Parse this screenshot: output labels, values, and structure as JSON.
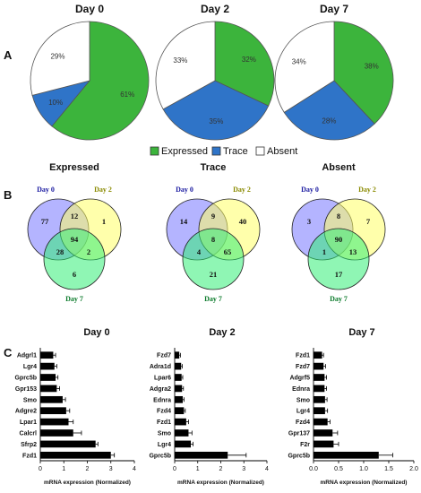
{
  "panel_labels": {
    "a": "A",
    "b": "B",
    "c": "C"
  },
  "colors": {
    "expressed": "#3cb43c",
    "trace": "#2f74c8",
    "absent": "#ffffff",
    "venn_day0": "#7777ff",
    "venn_day2": "#ffff66",
    "venn_day7": "#33ee77",
    "set_day0": "#1a1aa0",
    "set_day2": "#8a8a00",
    "set_day7": "#0a7a2a"
  },
  "legend": [
    {
      "key": "expressed",
      "label": "Expressed"
    },
    {
      "key": "trace",
      "label": "Trace"
    },
    {
      "key": "absent",
      "label": "Absent"
    }
  ],
  "chart_data": [
    {
      "type": "pie",
      "title": "Day 0",
      "slices": [
        {
          "key": "expressed",
          "value": 61,
          "label": "61%"
        },
        {
          "key": "trace",
          "value": 10,
          "label": "10%"
        },
        {
          "key": "absent",
          "value": 29,
          "label": "29%"
        }
      ]
    },
    {
      "type": "pie",
      "title": "Day 2",
      "slices": [
        {
          "key": "expressed",
          "value": 32,
          "label": "32%"
        },
        {
          "key": "trace",
          "value": 35,
          "label": "35%"
        },
        {
          "key": "absent",
          "value": 33,
          "label": "33%"
        }
      ]
    },
    {
      "type": "pie",
      "title": "Day 7",
      "slices": [
        {
          "key": "expressed",
          "value": 38,
          "label": "38%"
        },
        {
          "key": "trace",
          "value": 28,
          "label": "28%"
        },
        {
          "key": "absent",
          "value": 34,
          "label": "34%"
        }
      ]
    },
    {
      "type": "venn",
      "title": "Expressed",
      "sets": [
        "Day 0",
        "Day 2",
        "Day 7"
      ],
      "regions": {
        "d0": "77",
        "d2": "1",
        "d7": "6",
        "d0d2": "12",
        "d0d7": "28",
        "d2d7": "2",
        "all": "94"
      }
    },
    {
      "type": "venn",
      "title": "Trace",
      "sets": [
        "Day 0",
        "Day 2",
        "Day 7"
      ],
      "regions": {
        "d0": "14",
        "d2": "40",
        "d7": "21",
        "d0d2": "9",
        "d0d7": "4",
        "d2d7": "65",
        "all": "8"
      }
    },
    {
      "type": "venn",
      "title": "Absent",
      "sets": [
        "Day 0",
        "Day 2",
        "Day 7"
      ],
      "regions": {
        "d0": "3",
        "d2": "7",
        "d7": "17",
        "d0d2": "8",
        "d0d7": "1",
        "d2d7": "13",
        "all": "90"
      }
    },
    {
      "type": "bar",
      "orientation": "horizontal",
      "title": "Day 0",
      "xlabel": "mRNA expression (Normalized)",
      "xlim": [
        0,
        4
      ],
      "ticks": [
        "0",
        "1",
        "2",
        "3",
        "4"
      ],
      "categories": [
        "Adgrl1",
        "Lgr4",
        "Gprc5b",
        "Gpr153",
        "Smo",
        "Adgre2",
        "Lpar1",
        "Calcrl",
        "Sfrp2",
        "Fzd1"
      ],
      "values": [
        0.55,
        0.6,
        0.65,
        0.7,
        0.95,
        1.1,
        1.2,
        1.4,
        2.35,
        3.0
      ],
      "errors": [
        0.1,
        0.1,
        0.1,
        0.12,
        0.12,
        0.15,
        0.2,
        0.35,
        0.1,
        0.15
      ]
    },
    {
      "type": "bar",
      "orientation": "horizontal",
      "title": "Day 2",
      "xlabel": "mRNA expression (Normalized)",
      "xlim": [
        0,
        4
      ],
      "ticks": [
        "0",
        "1",
        "2",
        "3",
        "4"
      ],
      "categories": [
        "Fzd7",
        "Adra1d",
        "Lpar6",
        "Adgra2",
        "Ednra",
        "Fzd4",
        "Fzd1",
        "Smo",
        "Lgr4",
        "Gprc5b"
      ],
      "values": [
        0.2,
        0.28,
        0.3,
        0.32,
        0.35,
        0.4,
        0.5,
        0.6,
        0.7,
        2.3
      ],
      "errors": [
        0.05,
        0.05,
        0.05,
        0.06,
        0.06,
        0.06,
        0.1,
        0.15,
        0.1,
        0.8
      ]
    },
    {
      "type": "bar",
      "orientation": "horizontal",
      "title": "Day 7",
      "xlabel": "mRNA expression (Normalized)",
      "xlim": [
        0,
        2
      ],
      "ticks": [
        "0.0",
        "0.5",
        "1.0",
        "1.5",
        "2.0"
      ],
      "categories": [
        "Fzd1",
        "Fzd7",
        "Adgrf5",
        "Ednra",
        "Smo",
        "Lgr4",
        "Fzd4",
        "Gpr137",
        "F2r",
        "Gprc5b"
      ],
      "values": [
        0.17,
        0.2,
        0.22,
        0.22,
        0.23,
        0.23,
        0.28,
        0.38,
        0.4,
        1.3
      ],
      "errors": [
        0.03,
        0.04,
        0.04,
        0.04,
        0.04,
        0.05,
        0.05,
        0.1,
        0.1,
        0.28
      ]
    }
  ]
}
